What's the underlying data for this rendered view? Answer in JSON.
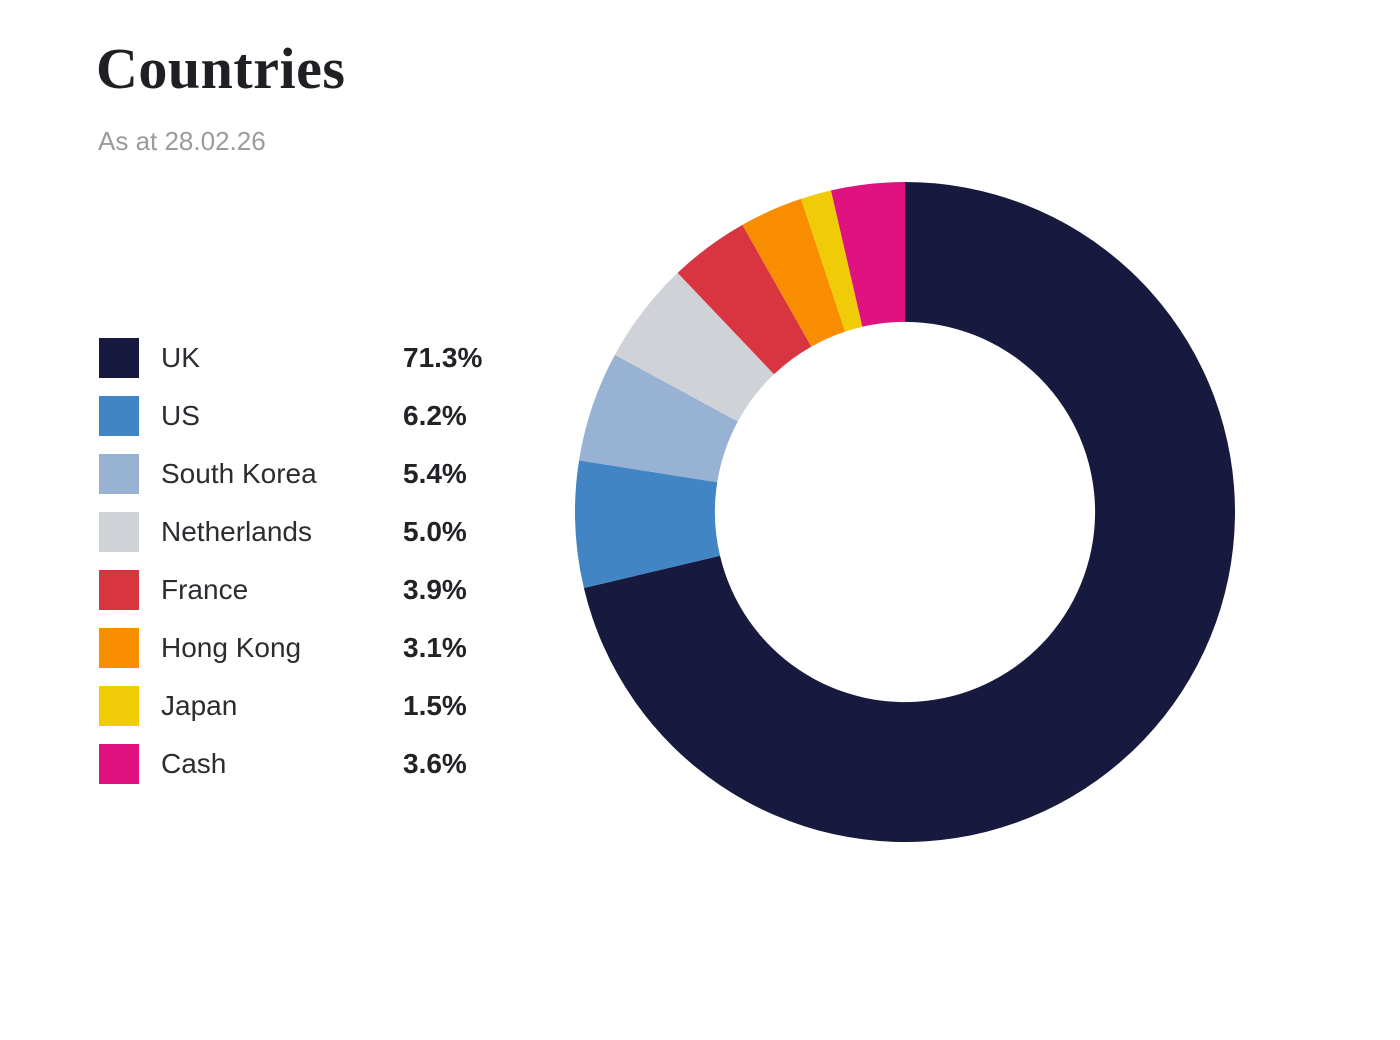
{
  "header": {
    "title": "Countries",
    "subtitle": "As at 28.02.26"
  },
  "colors": {
    "background": "#FFFFFF",
    "title": "#1F2024",
    "subtitle": "#9B9B9B",
    "label": "#2C2D31",
    "value": "#222327"
  },
  "chart_data": {
    "type": "pie",
    "variant": "donut",
    "title": "Countries",
    "as_at": "As at 28.02.26",
    "legend_position": "left",
    "start_angle_deg": 0,
    "direction": "clockwise",
    "inner_radius_ratio": 0.576,
    "categories": [
      "UK",
      "US",
      "South Korea",
      "Netherlands",
      "France",
      "Hong Kong",
      "Japan",
      "Cash"
    ],
    "values": [
      71.3,
      6.2,
      5.4,
      5.0,
      3.9,
      3.1,
      1.5,
      3.6
    ],
    "series": [
      {
        "label": "UK",
        "value": 71.3,
        "percent_label": "71.3%",
        "color": "#171A3E"
      },
      {
        "label": "US",
        "value": 6.2,
        "percent_label": "6.2%",
        "color": "#4285C4"
      },
      {
        "label": "South Korea",
        "value": 5.4,
        "percent_label": "5.4%",
        "color": "#97B2D3"
      },
      {
        "label": "Netherlands",
        "value": 5.0,
        "percent_label": "5.0%",
        "color": "#CFD3D7"
      },
      {
        "label": "France",
        "value": 3.9,
        "percent_label": "3.9%",
        "color": "#D93540"
      },
      {
        "label": "Hong Kong",
        "value": 3.1,
        "percent_label": "3.1%",
        "color": "#F98D00"
      },
      {
        "label": "Japan",
        "value": 1.5,
        "percent_label": "1.5%",
        "color": "#F0CC08"
      },
      {
        "label": "Cash",
        "value": 3.6,
        "percent_label": "3.6%",
        "color": "#DF1280"
      }
    ]
  }
}
